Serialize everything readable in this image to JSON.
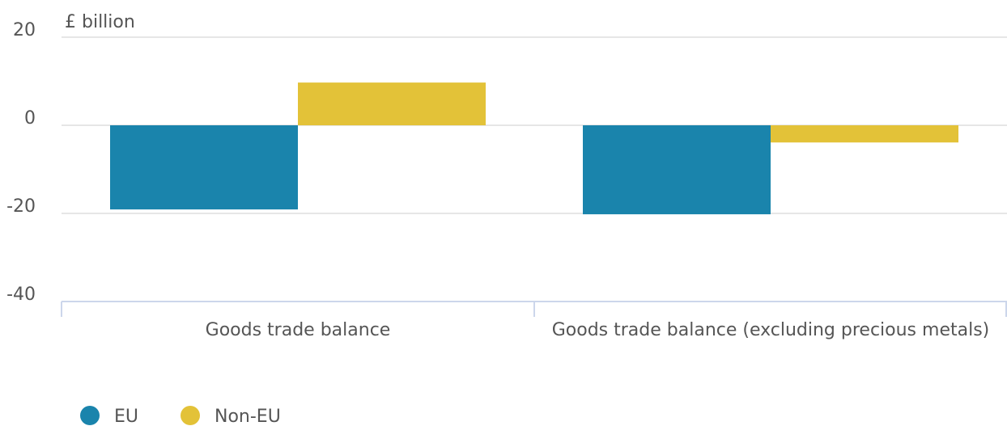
{
  "chart_data": {
    "type": "bar",
    "y_label": "£ billion",
    "categories": [
      "Goods trade balance",
      "Goods trade balance (excluding precious metals)"
    ],
    "series": [
      {
        "name": "EU",
        "color": "#1a84ac",
        "values": [
          -19.1,
          -20.2
        ]
      },
      {
        "name": "Non-EU",
        "color": "#e3c238",
        "values": [
          9.7,
          -3.9
        ]
      }
    ],
    "ylim": [
      -40,
      20
    ],
    "yticks": [
      -40,
      -20,
      0,
      20
    ],
    "grid": true,
    "legend": "bottom-left"
  }
}
